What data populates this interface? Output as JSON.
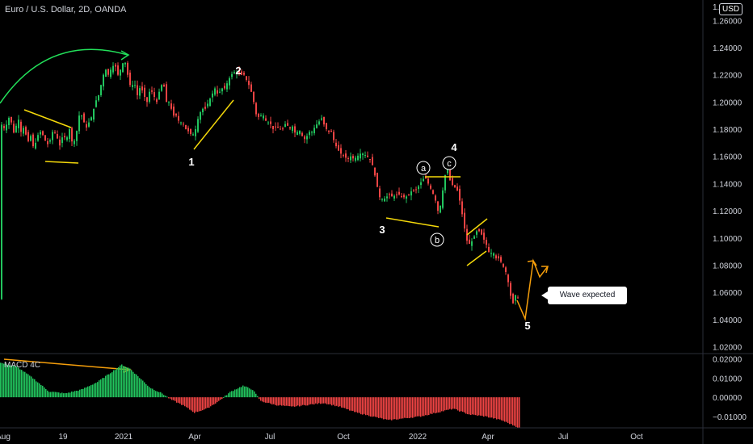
{
  "header": {
    "symbol_title": "Euro / U.S. Dollar, 2D, OANDA",
    "currency_badge": "USD",
    "top_price_partial": "1."
  },
  "indicator": {
    "label": "MACD 4C"
  },
  "annotations": {
    "wave_labels": [
      "1",
      "2",
      "3",
      "4",
      "5"
    ],
    "sub_wave_labels": [
      "a",
      "b",
      "c"
    ],
    "callout": "Wave expected"
  },
  "colors": {
    "bull": "#26a69a",
    "bear": "#ef5350",
    "green_candle": "#22c55e",
    "red_candle": "#ef4444",
    "trendline": "#f5d90a",
    "projection": "#f59e0b",
    "arc": "#22e05a",
    "macd_pos": "#22c55e",
    "macd_neg": "#ef4444"
  },
  "chart_data": [
    {
      "type": "candlestick",
      "title": "Euro / U.S. Dollar, 2D, OANDA",
      "x_ticks": [
        "Aug",
        "19",
        "2021",
        "Apr",
        "Jul",
        "Oct",
        "2022",
        "Apr",
        "Jul",
        "Oct"
      ],
      "y_ticks": [
        1.26,
        1.24,
        1.22,
        1.2,
        1.18,
        1.16,
        1.14,
        1.12,
        1.1,
        1.08,
        1.06,
        1.04,
        1.02
      ],
      "y_tick_labels": [
        "1.26000",
        "1.24000",
        "1.22000",
        "1.20000",
        "1.18000",
        "1.16000",
        "1.14000",
        "1.12000",
        "1.10000",
        "1.08000",
        "1.06000",
        "1.04000",
        "1.02000"
      ],
      "ylim": [
        1.015,
        1.275
      ],
      "close_path": [
        [
          0,
          1.185
        ],
        [
          6,
          1.18
        ],
        [
          12,
          1.19
        ],
        [
          18,
          1.175
        ],
        [
          22,
          1.19
        ],
        [
          26,
          1.178
        ],
        [
          30,
          1.182
        ],
        [
          34,
          1.17
        ],
        [
          38,
          1.175
        ],
        [
          42,
          1.165
        ],
        [
          46,
          1.175
        ],
        [
          50,
          1.178
        ],
        [
          54,
          1.175
        ],
        [
          58,
          1.168
        ],
        [
          62,
          1.172
        ],
        [
          66,
          1.18
        ],
        [
          70,
          1.175
        ],
        [
          74,
          1.168
        ],
        [
          78,
          1.176
        ],
        [
          82,
          1.172
        ],
        [
          86,
          1.18
        ],
        [
          90,
          1.168
        ],
        [
          94,
          1.175
        ],
        [
          98,
          1.19
        ],
        [
          102,
          1.19
        ],
        [
          106,
          1.18
        ],
        [
          110,
          1.185
        ],
        [
          114,
          1.19
        ],
        [
          118,
          1.2
        ],
        [
          122,
          1.205
        ],
        [
          126,
          1.215
        ],
        [
          130,
          1.225
        ],
        [
          134,
          1.22
        ],
        [
          138,
          1.225
        ],
        [
          142,
          1.228
        ],
        [
          146,
          1.22
        ],
        [
          150,
          1.225
        ],
        [
          154,
          1.232
        ],
        [
          158,
          1.22
        ],
        [
          162,
          1.21
        ],
        [
          166,
          1.215
        ],
        [
          170,
          1.205
        ],
        [
          174,
          1.212
        ],
        [
          178,
          1.205
        ],
        [
          182,
          1.2
        ],
        [
          186,
          1.21
        ],
        [
          190,
          1.205
        ],
        [
          194,
          1.2
        ],
        [
          198,
          1.21
        ],
        [
          202,
          1.215
        ],
        [
          206,
          1.2
        ],
        [
          210,
          1.2
        ],
        [
          214,
          1.19
        ],
        [
          218,
          1.19
        ],
        [
          222,
          1.185
        ],
        [
          226,
          1.185
        ],
        [
          230,
          1.18
        ],
        [
          234,
          1.178
        ],
        [
          238,
          1.175
        ],
        [
          242,
          1.18
        ],
        [
          246,
          1.19
        ],
        [
          250,
          1.195
        ],
        [
          254,
          1.195
        ],
        [
          258,
          1.2
        ],
        [
          262,
          1.205
        ],
        [
          266,
          1.21
        ],
        [
          270,
          1.205
        ],
        [
          274,
          1.21
        ],
        [
          278,
          1.21
        ],
        [
          282,
          1.215
        ],
        [
          286,
          1.22
        ],
        [
          290,
          1.222
        ],
        [
          294,
          1.222
        ],
        [
          298,
          1.22
        ],
        [
          302,
          1.22
        ],
        [
          306,
          1.215
        ],
        [
          310,
          1.21
        ],
        [
          314,
          1.2
        ],
        [
          318,
          1.188
        ],
        [
          322,
          1.19
        ],
        [
          326,
          1.19
        ],
        [
          330,
          1.185
        ],
        [
          334,
          1.185
        ],
        [
          338,
          1.18
        ],
        [
          342,
          1.182
        ],
        [
          346,
          1.18
        ],
        [
          350,
          1.18
        ],
        [
          354,
          1.185
        ],
        [
          358,
          1.18
        ],
        [
          362,
          1.182
        ],
        [
          366,
          1.176
        ],
        [
          370,
          1.18
        ],
        [
          374,
          1.175
        ],
        [
          378,
          1.172
        ],
        [
          382,
          1.178
        ],
        [
          386,
          1.178
        ],
        [
          390,
          1.182
        ],
        [
          394,
          1.185
        ],
        [
          398,
          1.188
        ],
        [
          402,
          1.182
        ],
        [
          406,
          1.178
        ],
        [
          410,
          1.178
        ],
        [
          414,
          1.17
        ],
        [
          418,
          1.165
        ],
        [
          422,
          1.162
        ],
        [
          426,
          1.16
        ],
        [
          430,
          1.158
        ],
        [
          434,
          1.16
        ],
        [
          438,
          1.158
        ],
        [
          442,
          1.16
        ],
        [
          446,
          1.162
        ],
        [
          450,
          1.162
        ],
        [
          454,
          1.16
        ],
        [
          458,
          1.158
        ],
        [
          462,
          1.152
        ],
        [
          466,
          1.14
        ],
        [
          470,
          1.13
        ],
        [
          474,
          1.128
        ],
        [
          478,
          1.13
        ],
        [
          482,
          1.132
        ],
        [
          486,
          1.13
        ],
        [
          490,
          1.132
        ],
        [
          494,
          1.132
        ],
        [
          498,
          1.13
        ],
        [
          502,
          1.13
        ],
        [
          506,
          1.132
        ],
        [
          510,
          1.135
        ],
        [
          514,
          1.135
        ],
        [
          518,
          1.138
        ],
        [
          522,
          1.142
        ],
        [
          526,
          1.145
        ],
        [
          530,
          1.14
        ],
        [
          534,
          1.135
        ],
        [
          538,
          1.13
        ],
        [
          542,
          1.12
        ],
        [
          546,
          1.125
        ],
        [
          550,
          1.145
        ],
        [
          554,
          1.15
        ],
        [
          558,
          1.14
        ],
        [
          562,
          1.138
        ],
        [
          566,
          1.135
        ],
        [
          570,
          1.125
        ],
        [
          574,
          1.11
        ],
        [
          578,
          1.098
        ],
        [
          582,
          1.095
        ],
        [
          586,
          1.1
        ],
        [
          590,
          1.105
        ],
        [
          594,
          1.105
        ],
        [
          598,
          1.1
        ],
        [
          602,
          1.095
        ],
        [
          606,
          1.088
        ],
        [
          610,
          1.09
        ],
        [
          614,
          1.085
        ],
        [
          618,
          1.085
        ],
        [
          622,
          1.08
        ],
        [
          626,
          1.075
        ],
        [
          630,
          1.065
        ],
        [
          634,
          1.05
        ],
        [
          638,
          1.058
        ],
        [
          642,
          1.055
        ]
      ],
      "volatility": 0.004
    },
    {
      "type": "histogram",
      "name": "MACD 4C",
      "y_ticks": [
        0.02,
        0.01,
        0.0,
        -0.01
      ],
      "y_tick_labels": [
        "0.02000",
        "0.01000",
        "0.00000",
        "−0.01000"
      ],
      "ylim": [
        -0.016,
        0.022
      ],
      "positive_end_x": 210,
      "values": [
        [
          0,
          0.018
        ],
        [
          20,
          0.016
        ],
        [
          40,
          0.01
        ],
        [
          60,
          0.003
        ],
        [
          80,
          0.002
        ],
        [
          100,
          0.004
        ],
        [
          120,
          0.008
        ],
        [
          140,
          0.014
        ],
        [
          150,
          0.017
        ],
        [
          160,
          0.015
        ],
        [
          170,
          0.011
        ],
        [
          185,
          0.005
        ],
        [
          200,
          0.002
        ],
        [
          210,
          -0.001
        ],
        [
          225,
          -0.004
        ],
        [
          240,
          -0.008
        ],
        [
          255,
          -0.006
        ],
        [
          270,
          -0.002
        ],
        [
          285,
          0.003
        ],
        [
          300,
          0.006
        ],
        [
          312,
          0.004
        ],
        [
          322,
          -0.002
        ],
        [
          340,
          -0.004
        ],
        [
          360,
          -0.005
        ],
        [
          380,
          -0.004
        ],
        [
          400,
          -0.003
        ],
        [
          420,
          -0.005
        ],
        [
          440,
          -0.008
        ],
        [
          460,
          -0.01
        ],
        [
          480,
          -0.012
        ],
        [
          500,
          -0.011
        ],
        [
          520,
          -0.01
        ],
        [
          540,
          -0.008
        ],
        [
          560,
          -0.006
        ],
        [
          580,
          -0.009
        ],
        [
          600,
          -0.01
        ],
        [
          620,
          -0.012
        ],
        [
          642,
          -0.016
        ]
      ]
    }
  ]
}
